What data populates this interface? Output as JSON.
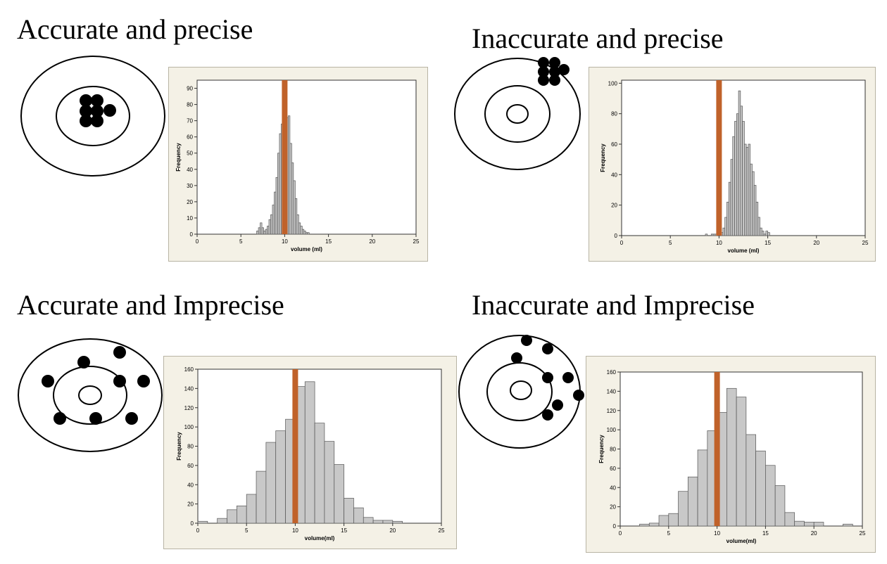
{
  "titles": {
    "q1": "Accurate and precise",
    "q2": "Inaccurate and precise",
    "q3": "Accurate and Imprecise",
    "q4": "Inaccurate and Imprecise"
  },
  "colors": {
    "bar_fill": "#c8c8c8",
    "bar_stroke": "#555555",
    "reference_line": "#c0622a",
    "panel_bg": "#f4f1e6"
  },
  "chart_data": [
    {
      "type": "bar",
      "title": "",
      "xlabel": "volume (ml)",
      "ylabel": "Frequency",
      "xlim": [
        0,
        25
      ],
      "ylim": [
        0,
        95
      ],
      "x_ticks": [
        0,
        5,
        10,
        15,
        20,
        25
      ],
      "y_ticks": [
        0,
        10,
        20,
        30,
        40,
        50,
        60,
        70,
        80,
        90
      ],
      "bin_width": 0.2,
      "reference_line": 10,
      "bins": [
        6.8,
        7.0,
        7.2,
        7.4,
        7.6,
        7.8,
        8.0,
        8.2,
        8.4,
        8.6,
        8.8,
        9.0,
        9.2,
        9.4,
        9.6,
        9.8,
        10.0,
        10.2,
        10.4,
        10.6,
        10.8,
        11.0,
        11.2,
        11.4,
        11.6,
        11.8,
        12.0,
        12.2,
        12.4,
        12.6
      ],
      "values": [
        2,
        4,
        7,
        4,
        2,
        3,
        5,
        9,
        12,
        18,
        26,
        35,
        50,
        62,
        68,
        70,
        65,
        72,
        73,
        56,
        44,
        33,
        22,
        12,
        7,
        5,
        3,
        2,
        1,
        1
      ]
    },
    {
      "type": "bar",
      "title": "",
      "xlabel": "volume (ml)",
      "ylabel": "Frequency",
      "xlim": [
        0,
        25
      ],
      "ylim": [
        0,
        102
      ],
      "x_ticks": [
        0,
        5,
        10,
        15,
        20,
        25
      ],
      "y_ticks": [
        0,
        20,
        40,
        60,
        80,
        100
      ],
      "bin_width": 0.2,
      "reference_line": 10,
      "bins": [
        8.6,
        9.2,
        9.4,
        9.6,
        10.2,
        10.4,
        10.6,
        10.8,
        11.0,
        11.2,
        11.4,
        11.6,
        11.8,
        12.0,
        12.2,
        12.4,
        12.6,
        12.8,
        13.0,
        13.2,
        13.4,
        13.6,
        13.8,
        14.0,
        14.2,
        14.4,
        14.6,
        14.8,
        15.0
      ],
      "values": [
        1,
        1,
        1,
        1,
        2,
        5,
        12,
        22,
        35,
        50,
        65,
        75,
        80,
        95,
        85,
        75,
        60,
        58,
        60,
        47,
        42,
        33,
        22,
        12,
        5,
        3,
        1,
        3,
        2
      ]
    },
    {
      "type": "bar",
      "title": "",
      "xlabel": "volume(ml)",
      "ylabel": "Frequency",
      "xlim": [
        0,
        25
      ],
      "ylim": [
        0,
        160
      ],
      "x_ticks": [
        0,
        5,
        10,
        15,
        20,
        25
      ],
      "y_ticks": [
        0,
        20,
        40,
        60,
        80,
        100,
        120,
        140,
        160
      ],
      "bin_width": 1,
      "reference_line": 10,
      "bins": [
        0,
        1,
        2,
        3,
        4,
        5,
        6,
        7,
        8,
        9,
        10,
        11,
        12,
        13,
        14,
        15,
        16,
        17,
        18,
        19,
        20
      ],
      "values": [
        2,
        0,
        5,
        14,
        18,
        30,
        54,
        84,
        96,
        108,
        142,
        147,
        104,
        85,
        61,
        26,
        16,
        6,
        3,
        3,
        2
      ]
    },
    {
      "type": "bar",
      "title": "",
      "xlabel": "volume(ml)",
      "ylabel": "Frequency",
      "xlim": [
        0,
        25
      ],
      "ylim": [
        0,
        160
      ],
      "x_ticks": [
        0,
        5,
        10,
        15,
        20,
        25
      ],
      "y_ticks": [
        0,
        20,
        40,
        60,
        80,
        100,
        120,
        140,
        160
      ],
      "bin_width": 1,
      "reference_line": 10,
      "bins": [
        2,
        3,
        4,
        5,
        6,
        7,
        8,
        9,
        10,
        11,
        12,
        13,
        14,
        15,
        16,
        17,
        18,
        19,
        20,
        21,
        22,
        23
      ],
      "values": [
        2,
        3,
        11,
        13,
        36,
        51,
        79,
        99,
        118,
        143,
        134,
        95,
        78,
        63,
        42,
        14,
        5,
        4,
        4,
        0,
        0,
        2
      ]
    }
  ]
}
